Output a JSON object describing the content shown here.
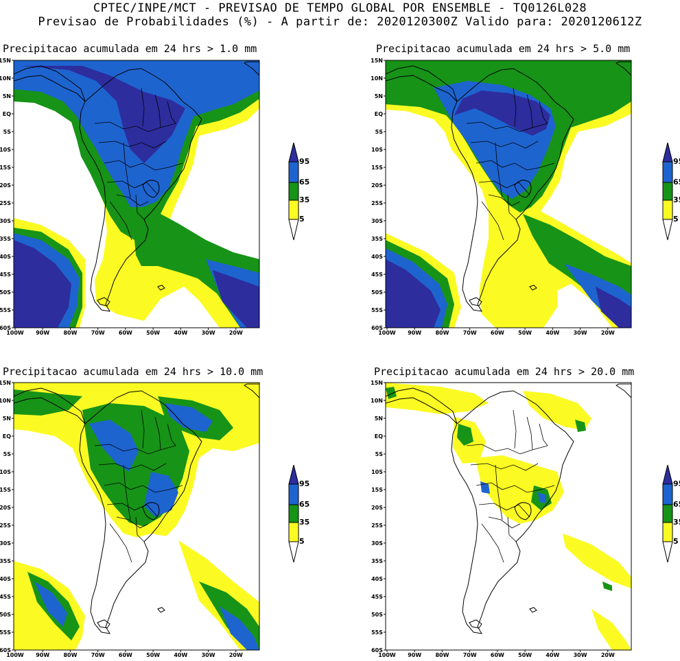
{
  "header": {
    "line1": "CPTEC/INPE/MCT - PREVISAO DE TEMPO GLOBAL POR ENSEMBLE - TQ0126L028",
    "line2": "Previsao de Probabilidades (%) -  A partir de: 2020120300Z  Valido para: 2020120612Z"
  },
  "axes": {
    "lat_labels": [
      "15N",
      "10N",
      "5N",
      "EQ",
      "5S",
      "10S",
      "15S",
      "20S",
      "25S",
      "30S",
      "35S",
      "40S",
      "45S",
      "50S",
      "55S",
      "60S"
    ],
    "lon_labels": [
      "100W",
      "90W",
      "80W",
      "70W",
      "60W",
      "50W",
      "40W",
      "30W",
      "20W"
    ]
  },
  "legend": {
    "levels": [
      "95",
      "65",
      "35",
      "5"
    ],
    "colors": {
      "c95": "#2d2d9e",
      "c65": "#1e64cf",
      "c35": "#179317",
      "c5": "#fbfb23",
      "none": "#ffffff"
    }
  },
  "panels": [
    {
      "title": "Precipitacao acumulada em 24 hrs > 1.0 mm"
    },
    {
      "title": "Precipitacao acumulada em 24 hrs > 5.0 mm"
    },
    {
      "title": "Precipitacao acumulada em 24 hrs > 10.0 mm"
    },
    {
      "title": "Precipitacao acumulada em 24 hrs > 20.0 mm"
    }
  ]
}
